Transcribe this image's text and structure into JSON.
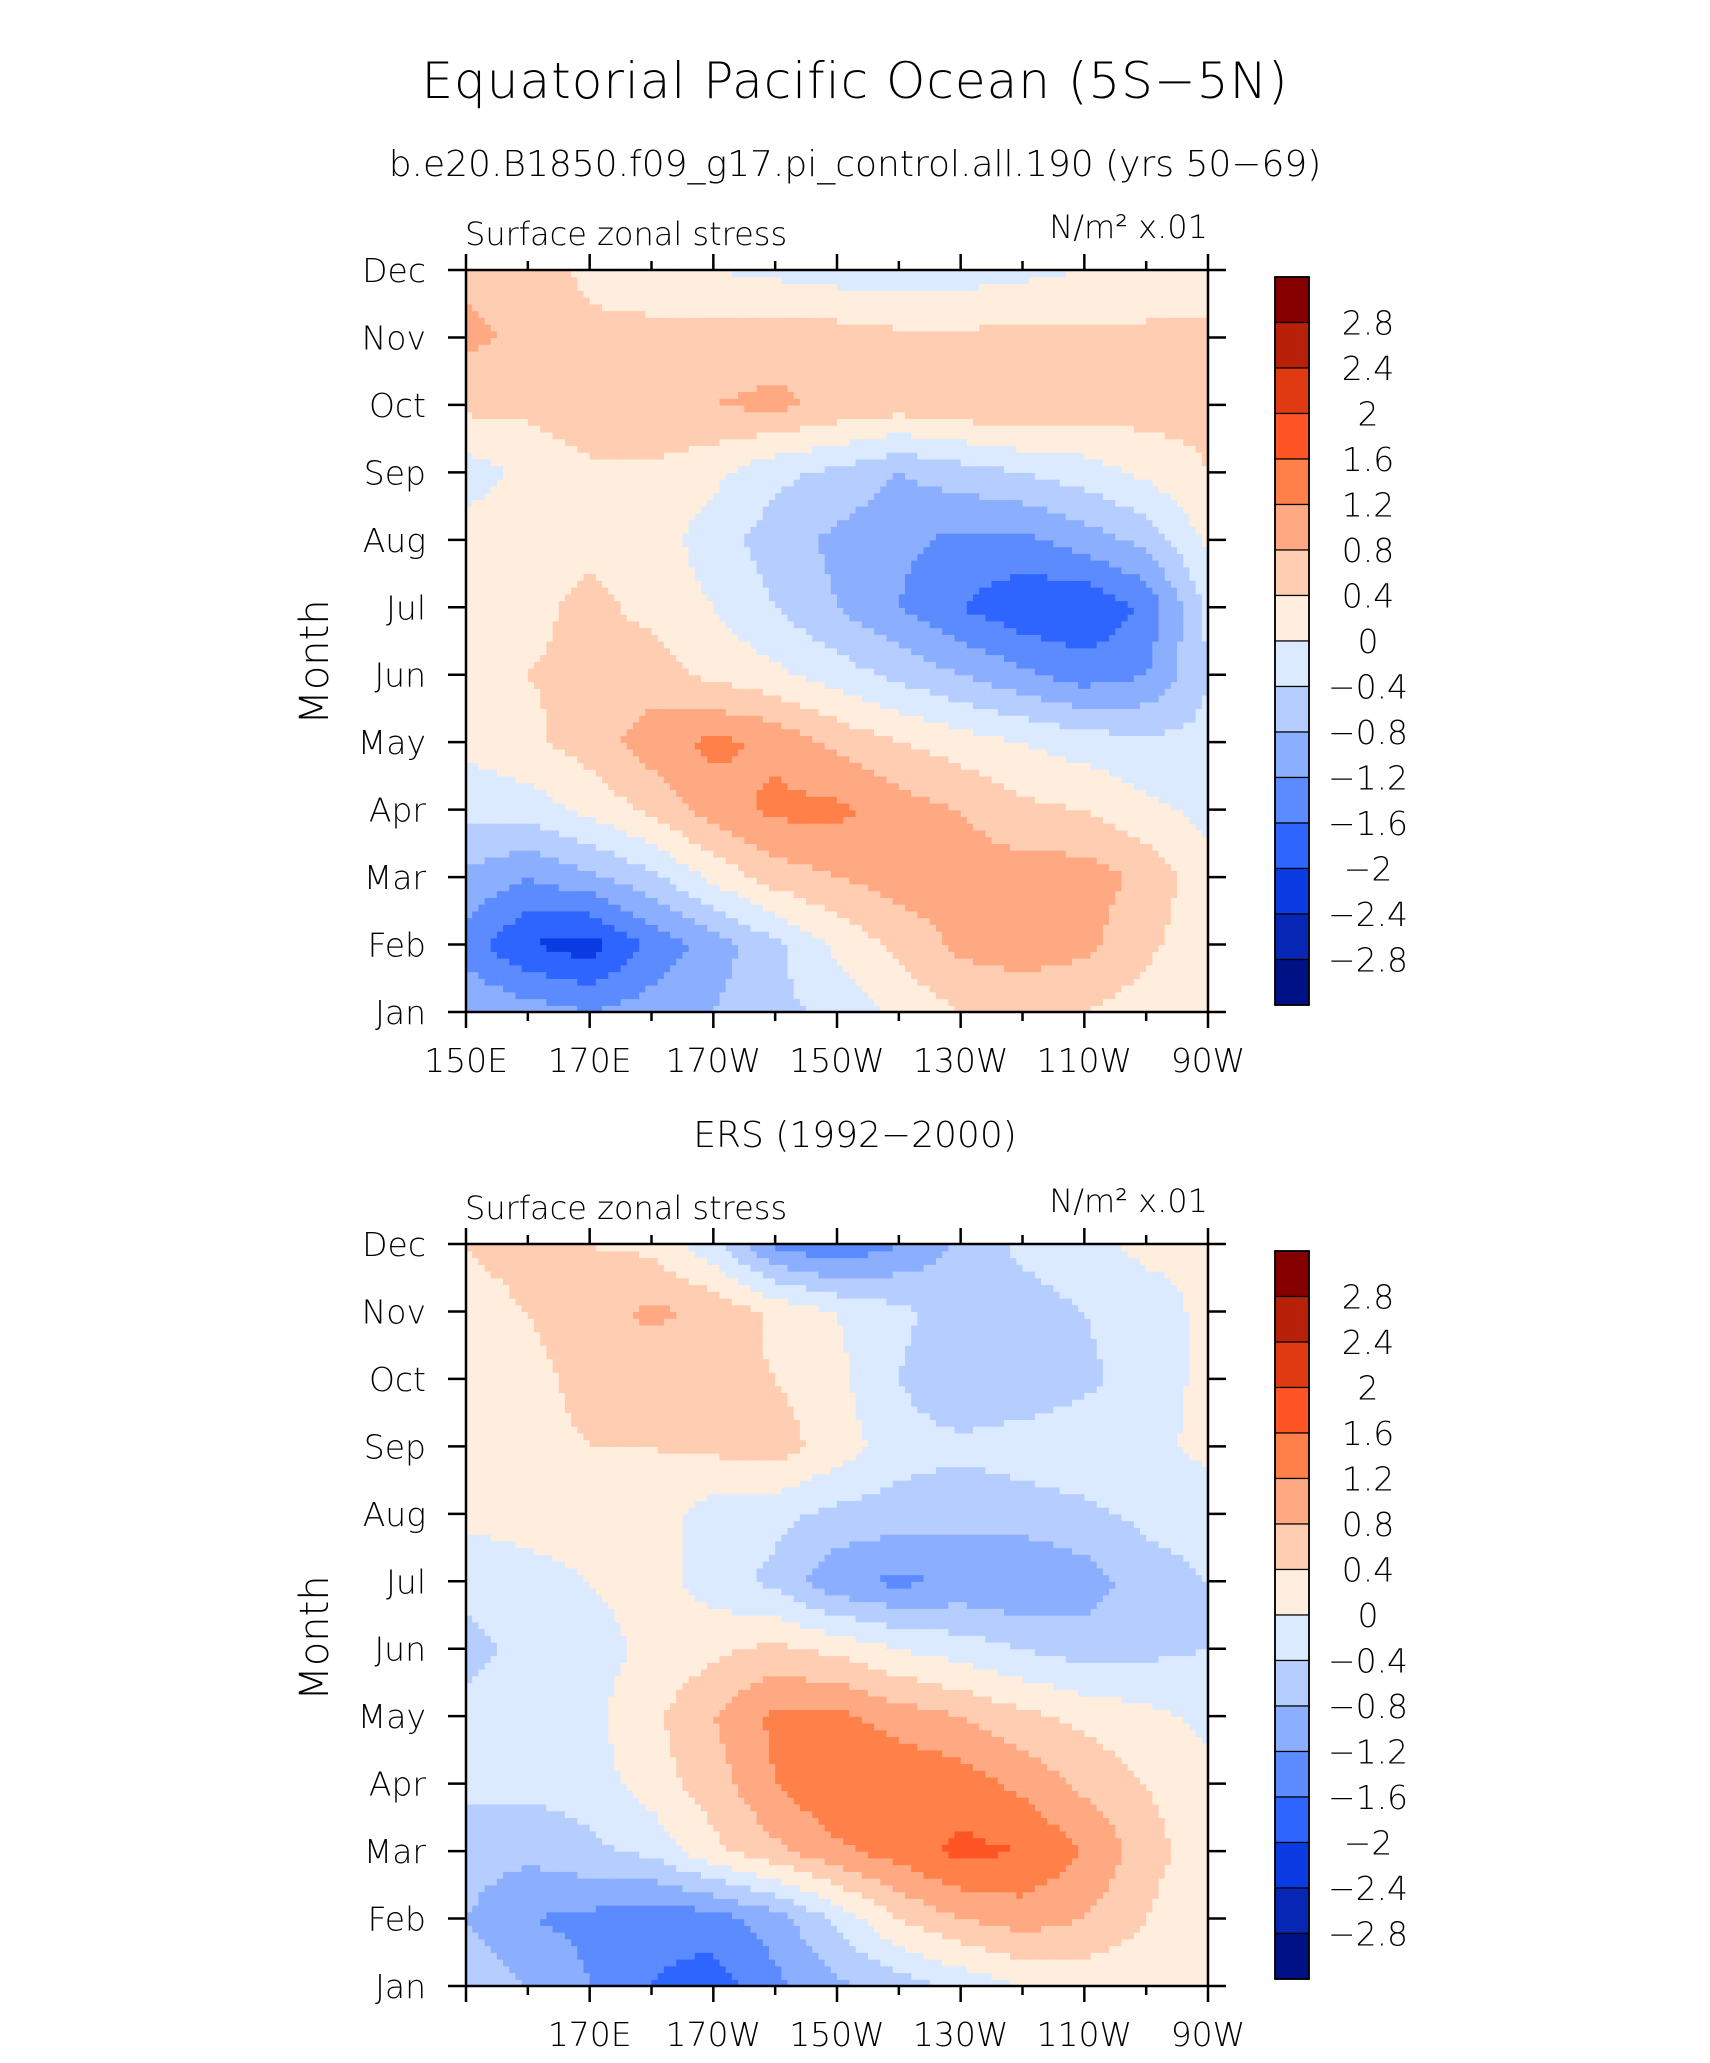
{
  "header": {
    "title": "Equatorial Pacific Ocean (5S−5N)",
    "subtitle": "b.e20.B1850.f09_g17.pi_control.all.190 (yrs 50−69)"
  },
  "colorbar": {
    "labels": [
      "2.8",
      "2.4",
      "2",
      "1.6",
      "1.2",
      "0.8",
      "0.4",
      "0",
      "−0.4",
      "−0.8",
      "−1.2",
      "−1.6",
      "−2",
      "−2.4",
      "−2.8"
    ],
    "colors": [
      "#870000",
      "#b8200a",
      "#e03a12",
      "#ff5525",
      "#ff8049",
      "#ffa983",
      "#ffcdb2",
      "#ffeedd",
      "#dbeaff",
      "#b5cdff",
      "#8caeff",
      "#5b8bff",
      "#2e64ff",
      "#0b3ce3",
      "#0626b3",
      "#001185"
    ]
  },
  "chart_data": [
    {
      "type": "heatmap",
      "title": "",
      "variable_label": "Surface zonal stress",
      "units_label": "N/m² x.01",
      "ylabel": "Month",
      "xlabel": "",
      "x_tick_labels": [
        "150E",
        "170E",
        "170W",
        "150W",
        "130W",
        "110W",
        "90W"
      ],
      "y_tick_labels": [
        "Jan",
        "Feb",
        "Mar",
        "Apr",
        "May",
        "Jun",
        "Jul",
        "Aug",
        "Sep",
        "Oct",
        "Nov",
        "Dec"
      ],
      "x_grid_lon_east": [
        150,
        160,
        170,
        180,
        190,
        200,
        210,
        220,
        230,
        240,
        250,
        260,
        270
      ],
      "y_grid_month": [
        "Jan",
        "Feb",
        "Mar",
        "Apr",
        "May",
        "Jun",
        "Jul",
        "Aug",
        "Sep",
        "Oct",
        "Nov",
        "Dec"
      ],
      "contour_levels": [
        -2.8,
        -2.4,
        -2.0,
        -1.6,
        -1.2,
        -0.8,
        -0.4,
        0,
        0.4,
        0.8,
        1.2,
        1.6,
        2.0,
        2.4,
        2.8
      ],
      "values": [
        [
          -0.8,
          -1.0,
          -1.2,
          -1.0,
          -0.8,
          -0.5,
          -0.3,
          0.1,
          0.4,
          0.5,
          0.4,
          0.2,
          0.0
        ],
        [
          -1.4,
          -2.0,
          -2.2,
          -1.5,
          -1.0,
          -0.5,
          0.1,
          0.5,
          0.9,
          1.0,
          0.9,
          0.5,
          0.1
        ],
        [
          -0.9,
          -1.2,
          -0.9,
          -0.5,
          0.1,
          0.6,
          0.8,
          1.0,
          1.0,
          1.0,
          1.0,
          0.7,
          0.1
        ],
        [
          -0.3,
          -0.2,
          0.1,
          0.5,
          1.0,
          1.3,
          1.3,
          1.0,
          0.8,
          0.5,
          0.4,
          0.1,
          -0.1
        ],
        [
          0.1,
          0.3,
          0.6,
          1.0,
          1.3,
          1.1,
          0.7,
          0.4,
          0.2,
          0.0,
          -0.2,
          -0.3,
          -0.3
        ],
        [
          0.2,
          0.4,
          0.5,
          0.6,
          0.3,
          0.1,
          -0.2,
          -0.5,
          -0.8,
          -1.1,
          -1.4,
          -1.2,
          -0.4
        ],
        [
          0.3,
          0.3,
          0.5,
          0.3,
          0.0,
          -0.4,
          -0.8,
          -1.2,
          -1.6,
          -1.9,
          -2.0,
          -1.5,
          -0.3
        ],
        [
          0.2,
          0.2,
          0.3,
          0.2,
          -0.2,
          -0.6,
          -0.9,
          -1.1,
          -1.3,
          -1.3,
          -1.0,
          -0.7,
          0.1
        ],
        [
          -0.2,
          0.1,
          0.3,
          0.3,
          0.1,
          -0.3,
          -0.5,
          -0.8,
          -0.6,
          -0.4,
          -0.2,
          0.1,
          0.4
        ],
        [
          0.5,
          0.5,
          0.7,
          0.8,
          0.8,
          0.9,
          0.7,
          0.6,
          0.7,
          0.8,
          0.6,
          0.6,
          0.5
        ],
        [
          0.9,
          0.7,
          0.5,
          0.5,
          0.6,
          0.6,
          0.6,
          0.5,
          0.5,
          0.5,
          0.5,
          0.5,
          0.5
        ],
        [
          0.7,
          0.6,
          0.3,
          0.2,
          0.0,
          -0.1,
          -0.2,
          -0.2,
          -0.2,
          -0.1,
          0.0,
          0.1,
          0.1
        ]
      ]
    },
    {
      "type": "heatmap",
      "title": "ERS (1992−2000)",
      "variable_label": "Surface zonal stress",
      "units_label": "N/m² x.01",
      "ylabel": "Month",
      "xlabel": "",
      "x_tick_labels": [
        "170E",
        "170W",
        "150W",
        "130W",
        "110W",
        "90W"
      ],
      "y_tick_labels": [
        "Jan",
        "Feb",
        "Mar",
        "Apr",
        "May",
        "Jun",
        "Jul",
        "Aug",
        "Sep",
        "Oct",
        "Nov",
        "Dec"
      ],
      "x_grid_lon_east": [
        150,
        160,
        170,
        180,
        190,
        200,
        210,
        220,
        230,
        240,
        250,
        260,
        270
      ],
      "y_grid_month": [
        "Jan",
        "Feb",
        "Mar",
        "Apr",
        "May",
        "Jun",
        "Jul",
        "Aug",
        "Sep",
        "Oct",
        "Nov",
        "Dec"
      ],
      "contour_levels": [
        -2.8,
        -2.4,
        -2.0,
        -1.6,
        -1.2,
        -0.8,
        -0.4,
        0,
        0.4,
        0.8,
        1.2,
        1.6,
        2.0,
        2.4,
        2.8
      ],
      "values": [
        [
          -0.5,
          -0.8,
          -1.2,
          -1.6,
          -1.8,
          -1.3,
          -0.9,
          -0.6,
          -0.3,
          0.0,
          0.1,
          0.1,
          0.0
        ],
        [
          -0.8,
          -1.2,
          -1.3,
          -1.5,
          -1.4,
          -1.0,
          -0.3,
          0.4,
          0.8,
          1.0,
          0.8,
          0.4,
          0.0
        ],
        [
          -0.6,
          -0.7,
          -0.5,
          -0.3,
          0.3,
          0.7,
          1.1,
          1.4,
          1.7,
          1.6,
          1.2,
          0.6,
          0.1
        ],
        [
          -0.3,
          -0.3,
          -0.2,
          0.2,
          0.6,
          1.2,
          1.6,
          1.6,
          1.4,
          1.1,
          0.7,
          0.4,
          0.1
        ],
        [
          -0.3,
          -0.3,
          -0.1,
          0.3,
          0.8,
          1.3,
          1.3,
          1.0,
          0.8,
          0.5,
          0.3,
          0.1,
          -0.1
        ],
        [
          -0.5,
          -0.3,
          -0.2,
          0.1,
          0.3,
          0.5,
          0.3,
          0.0,
          -0.2,
          -0.4,
          -0.6,
          -0.5,
          -0.4
        ],
        [
          -0.3,
          -0.2,
          0.0,
          0.2,
          -0.2,
          -0.5,
          -1.1,
          -1.3,
          -1.1,
          -1.2,
          -1.0,
          -0.6,
          -0.4
        ],
        [
          0.1,
          0.2,
          0.3,
          0.2,
          -0.2,
          -0.3,
          -0.5,
          -0.6,
          -0.7,
          -0.6,
          -0.5,
          -0.3,
          -0.2
        ],
        [
          0.2,
          0.3,
          0.4,
          0.4,
          0.5,
          0.6,
          0.2,
          -0.2,
          -0.3,
          -0.2,
          -0.1,
          -0.1,
          0.1
        ],
        [
          0.2,
          0.3,
          0.5,
          0.5,
          0.5,
          0.4,
          0.1,
          -0.4,
          -0.8,
          -0.7,
          -0.5,
          -0.2,
          0.1
        ],
        [
          0.3,
          0.4,
          0.6,
          0.9,
          0.7,
          0.3,
          0.0,
          -0.3,
          -0.6,
          -0.6,
          -0.4,
          -0.2,
          0.1
        ],
        [
          0.4,
          0.5,
          0.4,
          0.3,
          -0.3,
          -1.3,
          -1.6,
          -1.2,
          -0.7,
          -0.3,
          -0.1,
          0.1,
          0.1
        ]
      ]
    }
  ]
}
